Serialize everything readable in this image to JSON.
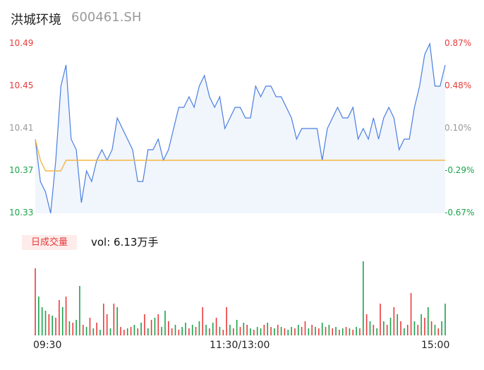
{
  "header": {
    "name": "洪城环境",
    "code": "600461.SH"
  },
  "price_axis": {
    "labels": [
      "10.49",
      "10.45",
      "10.41",
      "10.37",
      "10.33"
    ],
    "colors": [
      "#e83b3b",
      "#e83b3b",
      "#999999",
      "#1aa34a",
      "#1aa34a"
    ]
  },
  "pct_axis": {
    "labels": [
      "0.87%",
      "0.48%",
      "0.10%",
      "-0.29%",
      "-0.67%"
    ],
    "colors": [
      "#e83b3b",
      "#e83b3b",
      "#999999",
      "#1aa34a",
      "#1aa34a"
    ]
  },
  "volume": {
    "badge": "日成交量",
    "summary": "vol: 6.13万手"
  },
  "time_axis": {
    "labels": [
      "09:30",
      "11:30/13:00",
      "15:00"
    ]
  },
  "colors": {
    "price_line": "#4a7fe0",
    "avg_line": "#f5b642",
    "up": "#e83b3b",
    "down": "#1aa34a"
  },
  "chart_data": {
    "type": "line",
    "ylim": [
      10.33,
      10.49
    ],
    "x": [
      0,
      3,
      6,
      9,
      12,
      15,
      18,
      21,
      24,
      27,
      30,
      33,
      36,
      39,
      42,
      45,
      48,
      51,
      54,
      57,
      60,
      63,
      66,
      69,
      72,
      75,
      78,
      81,
      84,
      87,
      90,
      93,
      96,
      99,
      102,
      105,
      108,
      111,
      114,
      117,
      120,
      123,
      126,
      129,
      132,
      135,
      138,
      141,
      144,
      147,
      150,
      153,
      156,
      159,
      162,
      165,
      168,
      171,
      174,
      177,
      180,
      183,
      186,
      189,
      192,
      195,
      198,
      201,
      204,
      207,
      210,
      213,
      216,
      219,
      222,
      225,
      228,
      231,
      234,
      237,
      240
    ],
    "series": [
      {
        "values": [
          10.4,
          10.36,
          10.35,
          10.33,
          10.38,
          10.45,
          10.47,
          10.4,
          10.39,
          10.34,
          10.37,
          10.36,
          10.38,
          10.39,
          10.38,
          10.39,
          10.42,
          10.41,
          10.4,
          10.39,
          10.36,
          10.36,
          10.39,
          10.39,
          10.4,
          10.38,
          10.39,
          10.41,
          10.43,
          10.43,
          10.44,
          10.43,
          10.45,
          10.46,
          10.44,
          10.43,
          10.44,
          10.41,
          10.42,
          10.43,
          10.43,
          10.42,
          10.42,
          10.45,
          10.44,
          10.45,
          10.45,
          10.44,
          10.44,
          10.43,
          10.42,
          10.4,
          10.41,
          10.41,
          10.41,
          10.41,
          10.38,
          10.41,
          10.42,
          10.43,
          10.42,
          10.42,
          10.43,
          10.4,
          10.41,
          10.4,
          10.42,
          10.4,
          10.42,
          10.43,
          10.42,
          10.39,
          10.4,
          10.4,
          10.43,
          10.45,
          10.48,
          10.49,
          10.45,
          10.45,
          10.47
        ]
      },
      {
        "values": [
          10.4,
          10.38,
          10.37,
          10.37,
          10.37,
          10.37,
          10.38,
          10.38,
          10.38,
          10.38,
          10.38,
          10.38,
          10.38,
          10.38,
          10.38,
          10.38,
          10.38,
          10.38,
          10.38,
          10.38,
          10.38,
          10.38,
          10.38,
          10.38,
          10.38,
          10.38,
          10.38,
          10.38,
          10.38,
          10.38,
          10.38,
          10.38,
          10.38,
          10.38,
          10.38,
          10.38,
          10.38,
          10.38,
          10.38,
          10.38,
          10.38,
          10.38,
          10.38,
          10.38,
          10.38,
          10.38,
          10.38,
          10.38,
          10.38,
          10.38,
          10.38,
          10.38,
          10.38,
          10.38,
          10.38,
          10.38,
          10.38,
          10.38,
          10.38,
          10.38,
          10.38,
          10.38,
          10.38,
          10.38,
          10.38,
          10.38,
          10.38,
          10.38,
          10.38,
          10.38,
          10.38,
          10.38,
          10.38,
          10.38,
          10.38,
          10.38,
          10.38,
          10.38,
          10.38,
          10.38,
          10.38
        ]
      }
    ],
    "volume_bars": [
      [
        0,
        95,
        "up"
      ],
      [
        2,
        55,
        "down"
      ],
      [
        4,
        40,
        "down"
      ],
      [
        6,
        35,
        "down"
      ],
      [
        8,
        30,
        "up"
      ],
      [
        10,
        28,
        "down"
      ],
      [
        12,
        25,
        "up"
      ],
      [
        14,
        50,
        "up"
      ],
      [
        16,
        40,
        "down"
      ],
      [
        18,
        55,
        "up"
      ],
      [
        20,
        20,
        "down"
      ],
      [
        22,
        18,
        "up"
      ],
      [
        24,
        22,
        "down"
      ],
      [
        26,
        70,
        "down"
      ],
      [
        28,
        15,
        "up"
      ],
      [
        30,
        12,
        "down"
      ],
      [
        32,
        25,
        "up"
      ],
      [
        34,
        10,
        "down"
      ],
      [
        36,
        18,
        "up"
      ],
      [
        38,
        8,
        "down"
      ],
      [
        40,
        45,
        "up"
      ],
      [
        42,
        30,
        "up"
      ],
      [
        44,
        10,
        "down"
      ],
      [
        46,
        45,
        "up"
      ],
      [
        48,
        40,
        "down"
      ],
      [
        50,
        12,
        "up"
      ],
      [
        52,
        8,
        "up"
      ],
      [
        54,
        10,
        "down"
      ],
      [
        56,
        12,
        "up"
      ],
      [
        58,
        15,
        "down"
      ],
      [
        60,
        10,
        "up"
      ],
      [
        62,
        18,
        "down"
      ],
      [
        64,
        30,
        "up"
      ],
      [
        66,
        10,
        "down"
      ],
      [
        68,
        22,
        "up"
      ],
      [
        70,
        25,
        "down"
      ],
      [
        72,
        30,
        "up"
      ],
      [
        74,
        12,
        "down"
      ],
      [
        76,
        35,
        "down"
      ],
      [
        78,
        20,
        "up"
      ],
      [
        80,
        10,
        "up"
      ],
      [
        82,
        15,
        "down"
      ],
      [
        84,
        8,
        "up"
      ],
      [
        86,
        12,
        "down"
      ],
      [
        88,
        18,
        "down"
      ],
      [
        90,
        10,
        "up"
      ],
      [
        92,
        15,
        "down"
      ],
      [
        94,
        12,
        "up"
      ],
      [
        96,
        20,
        "down"
      ],
      [
        98,
        40,
        "up"
      ],
      [
        100,
        15,
        "down"
      ],
      [
        102,
        10,
        "up"
      ],
      [
        104,
        18,
        "down"
      ],
      [
        106,
        25,
        "up"
      ],
      [
        108,
        12,
        "down"
      ],
      [
        110,
        8,
        "up"
      ],
      [
        112,
        40,
        "up"
      ],
      [
        114,
        15,
        "down"
      ],
      [
        116,
        10,
        "up"
      ],
      [
        118,
        22,
        "down"
      ],
      [
        120,
        12,
        "up"
      ],
      [
        122,
        18,
        "down"
      ],
      [
        124,
        15,
        "up"
      ],
      [
        126,
        10,
        "down"
      ],
      [
        128,
        8,
        "up"
      ],
      [
        130,
        12,
        "down"
      ],
      [
        132,
        10,
        "down"
      ],
      [
        134,
        15,
        "up"
      ],
      [
        136,
        18,
        "down"
      ],
      [
        138,
        12,
        "up"
      ],
      [
        140,
        10,
        "down"
      ],
      [
        142,
        15,
        "up"
      ],
      [
        144,
        12,
        "down"
      ],
      [
        146,
        10,
        "up"
      ],
      [
        148,
        8,
        "down"
      ],
      [
        150,
        12,
        "down"
      ],
      [
        152,
        10,
        "up"
      ],
      [
        154,
        15,
        "down"
      ],
      [
        156,
        12,
        "up"
      ],
      [
        158,
        20,
        "up"
      ],
      [
        160,
        10,
        "down"
      ],
      [
        162,
        15,
        "up"
      ],
      [
        164,
        12,
        "down"
      ],
      [
        166,
        10,
        "up"
      ],
      [
        168,
        18,
        "down"
      ],
      [
        170,
        12,
        "up"
      ],
      [
        172,
        15,
        "down"
      ],
      [
        174,
        10,
        "up"
      ],
      [
        176,
        12,
        "down"
      ],
      [
        178,
        8,
        "up"
      ],
      [
        180,
        10,
        "down"
      ],
      [
        182,
        12,
        "up"
      ],
      [
        184,
        10,
        "down"
      ],
      [
        186,
        8,
        "up"
      ],
      [
        188,
        12,
        "down"
      ],
      [
        190,
        10,
        "up"
      ],
      [
        192,
        105,
        "down"
      ],
      [
        194,
        30,
        "up"
      ],
      [
        196,
        20,
        "down"
      ],
      [
        198,
        15,
        "up"
      ],
      [
        200,
        10,
        "down"
      ],
      [
        202,
        45,
        "up"
      ],
      [
        204,
        20,
        "down"
      ],
      [
        206,
        15,
        "up"
      ],
      [
        208,
        25,
        "down"
      ],
      [
        210,
        40,
        "up"
      ],
      [
        212,
        30,
        "down"
      ],
      [
        214,
        20,
        "up"
      ],
      [
        216,
        10,
        "down"
      ],
      [
        218,
        15,
        "up"
      ],
      [
        220,
        60,
        "up"
      ],
      [
        222,
        20,
        "down"
      ],
      [
        224,
        15,
        "up"
      ],
      [
        226,
        30,
        "down"
      ],
      [
        228,
        25,
        "up"
      ],
      [
        230,
        40,
        "down"
      ],
      [
        232,
        20,
        "up"
      ],
      [
        234,
        15,
        "down"
      ],
      [
        236,
        10,
        "up"
      ],
      [
        238,
        20,
        "down"
      ],
      [
        240,
        45,
        "down"
      ]
    ]
  }
}
